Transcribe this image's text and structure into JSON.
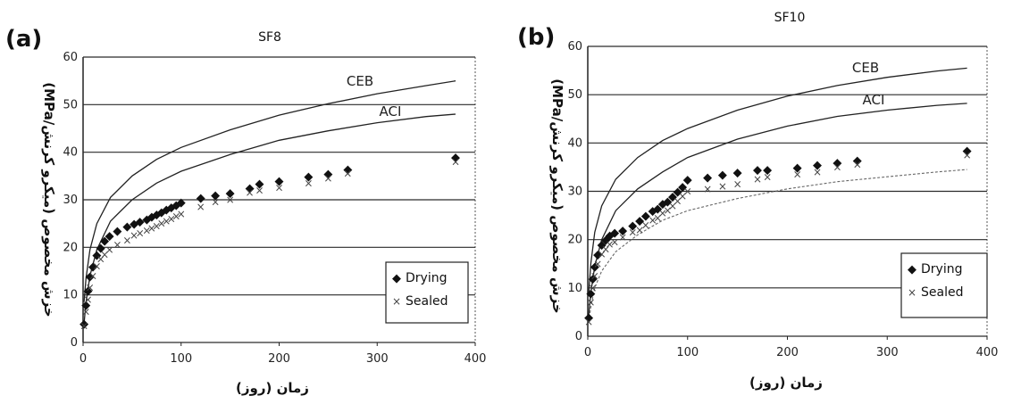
{
  "chart_data": [
    {
      "type": "line",
      "panel_label": "(a)",
      "title": "SF8",
      "xlabel": "زمان (روز)",
      "ylabel": "خزش مخصوص (میکرو کرنش/MPa)",
      "xlim": [
        0,
        400
      ],
      "ylim": [
        0,
        60
      ],
      "x_ticks": [
        "0",
        "100",
        "200",
        "300",
        "400"
      ],
      "y_ticks": [
        "0",
        "10",
        "20",
        "30",
        "40",
        "50",
        "60"
      ],
      "grid": "horizontal",
      "legend_position": "bottom-right",
      "curve_labels": [
        "CEB",
        "ACI"
      ],
      "series": [
        {
          "name": "CEB",
          "kind": "line",
          "x": [
            1,
            3,
            7,
            14,
            28,
            50,
            75,
            100,
            150,
            200,
            250,
            300,
            350,
            380
          ],
          "y": [
            8.5,
            13.5,
            19.5,
            25,
            30.5,
            35,
            38.5,
            41,
            44.7,
            47.8,
            50.2,
            52.3,
            54,
            55
          ]
        },
        {
          "name": "ACI",
          "kind": "line",
          "x": [
            1,
            3,
            7,
            14,
            28,
            50,
            75,
            100,
            150,
            200,
            250,
            300,
            350,
            380
          ],
          "y": [
            4,
            8.5,
            14,
            19.5,
            25.5,
            30,
            33.5,
            36,
            39.5,
            42.5,
            44.5,
            46.2,
            47.5,
            48
          ]
        },
        {
          "name": "Drying",
          "kind": "points",
          "marker": "◆",
          "x": [
            1,
            3,
            5,
            7,
            10,
            14,
            18,
            22,
            27,
            35,
            45,
            52,
            58,
            65,
            70,
            75,
            80,
            85,
            90,
            95,
            100,
            120,
            135,
            150,
            170,
            180,
            200,
            230,
            250,
            270,
            380
          ],
          "y": [
            4,
            8,
            11,
            14,
            16,
            18.5,
            20,
            21.5,
            22.5,
            23.5,
            24.5,
            25,
            25.5,
            26,
            26.5,
            27,
            27.5,
            28,
            28.5,
            29,
            29.5,
            30.5,
            31,
            31.5,
            32.5,
            33.5,
            34,
            35,
            35.5,
            36.5,
            39
          ]
        },
        {
          "name": "Sealed",
          "kind": "points",
          "marker": "×",
          "x": [
            1,
            3,
            5,
            7,
            10,
            14,
            18,
            22,
            27,
            35,
            45,
            52,
            58,
            65,
            70,
            75,
            80,
            85,
            90,
            95,
            100,
            120,
            135,
            150,
            170,
            180,
            200,
            230,
            250,
            270,
            380
          ],
          "y": [
            3.5,
            6.5,
            9,
            11.5,
            14,
            16,
            17.5,
            18.5,
            19.5,
            20.5,
            21.5,
            22.5,
            23,
            23.5,
            24,
            24.5,
            25,
            25.5,
            26,
            26.5,
            27,
            28.5,
            29.5,
            30,
            31.5,
            32,
            32.5,
            33.5,
            34.5,
            35.5,
            38
          ]
        }
      ]
    },
    {
      "type": "line",
      "panel_label": "(b)",
      "title": "SF10",
      "xlabel": "زمان (روز)",
      "ylabel": "خزش مخصوص (میکرو کرنش/MPa)",
      "xlim": [
        0,
        400
      ],
      "ylim": [
        0,
        60
      ],
      "x_ticks": [
        "0",
        "100",
        "200",
        "300",
        "400"
      ],
      "y_ticks": [
        "0",
        "10",
        "20",
        "30",
        "40",
        "50",
        "60"
      ],
      "grid": "horizontal",
      "legend_position": "bottom-right",
      "curve_labels": [
        "CEB",
        "ACI"
      ],
      "series": [
        {
          "name": "CEB",
          "kind": "line",
          "x": [
            1,
            3,
            7,
            14,
            28,
            50,
            75,
            100,
            150,
            200,
            250,
            300,
            350,
            380
          ],
          "y": [
            9,
            15,
            21.5,
            27,
            32.5,
            37,
            40.5,
            43,
            46.8,
            49.7,
            51.9,
            53.6,
            54.9,
            55.5
          ]
        },
        {
          "name": "ACI",
          "kind": "line",
          "x": [
            1,
            3,
            7,
            14,
            28,
            50,
            75,
            100,
            150,
            200,
            250,
            300,
            350,
            380
          ],
          "y": [
            4.5,
            9,
            14.5,
            20,
            26,
            30.5,
            34,
            37,
            40.8,
            43.5,
            45.5,
            46.8,
            47.8,
            48.2
          ]
        },
        {
          "name": "",
          "kind": "line",
          "x": [
            1,
            3,
            7,
            14,
            28,
            50,
            75,
            100,
            150,
            200,
            250,
            300,
            350,
            380
          ],
          "y": [
            3,
            6,
            10,
            13.5,
            17.5,
            21,
            24,
            26,
            28.5,
            30.5,
            32,
            33,
            34,
            34.5
          ]
        },
        {
          "name": "Drying",
          "kind": "points",
          "marker": "◆",
          "x": [
            1,
            3,
            5,
            7,
            10,
            14,
            18,
            22,
            27,
            35,
            45,
            52,
            58,
            65,
            70,
            75,
            80,
            85,
            90,
            95,
            100,
            120,
            135,
            150,
            170,
            180,
            210,
            230,
            250,
            270,
            380
          ],
          "y": [
            4,
            9,
            12,
            14.5,
            17,
            19,
            20,
            21,
            21.5,
            22,
            23,
            24,
            25,
            26,
            26.5,
            27.5,
            28,
            29,
            30,
            31,
            32.5,
            33,
            33.5,
            34,
            34.5,
            34.5,
            35,
            35.5,
            36,
            36.5,
            38.5
          ]
        },
        {
          "name": "Sealed",
          "kind": "points",
          "marker": "×",
          "x": [
            1,
            3,
            5,
            7,
            10,
            14,
            18,
            22,
            27,
            35,
            45,
            52,
            58,
            65,
            70,
            75,
            80,
            85,
            90,
            95,
            100,
            120,
            135,
            150,
            170,
            180,
            210,
            230,
            250,
            270,
            380
          ],
          "y": [
            3,
            7,
            10,
            12.5,
            15,
            17,
            18,
            19,
            19.5,
            20.5,
            21.5,
            22,
            23,
            24,
            24.5,
            25.5,
            26,
            27,
            28,
            29,
            30,
            30.5,
            31,
            31.5,
            32.5,
            33,
            33.5,
            34,
            35,
            35.5,
            37.5
          ]
        }
      ]
    }
  ]
}
